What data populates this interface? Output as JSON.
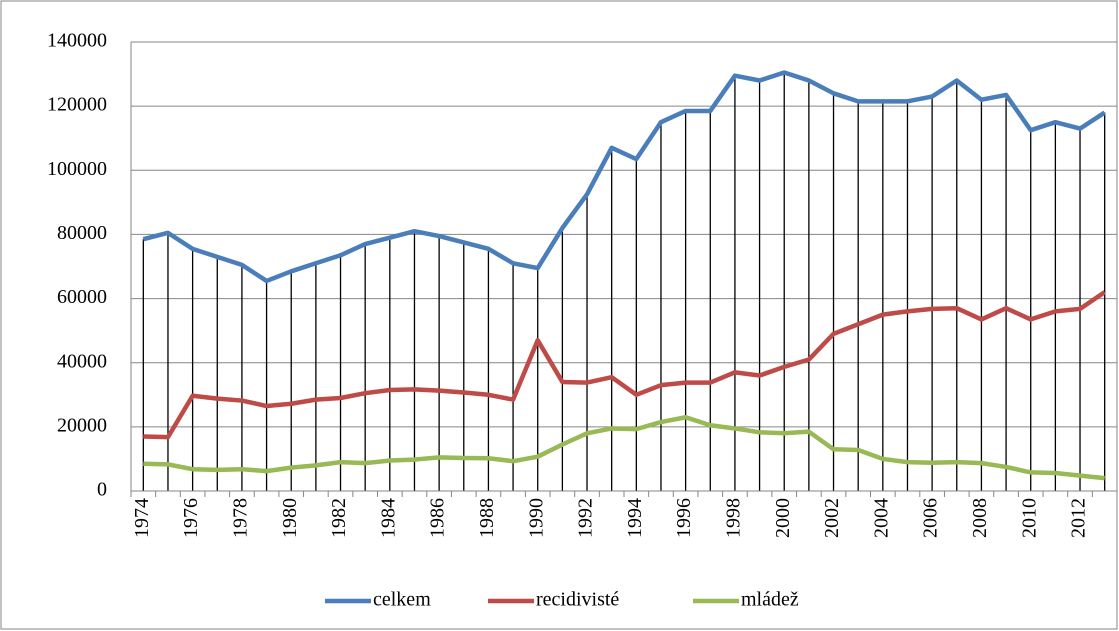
{
  "chart_data": {
    "type": "line",
    "categories": [
      "1974",
      null,
      "1976",
      null,
      "1978",
      null,
      "1980",
      null,
      "1982",
      null,
      "1984",
      null,
      "1986",
      null,
      "1988",
      null,
      "1990",
      null,
      "1992",
      null,
      "1994",
      null,
      "1996",
      null,
      "1998",
      null,
      "2000",
      null,
      "2002",
      null,
      "2004",
      null,
      "2006",
      null,
      "2008",
      null,
      "2010",
      null,
      "2012",
      null
    ],
    "series": [
      {
        "name": "celkem",
        "color": "#4a7ebb",
        "values": [
          78500,
          80500,
          75500,
          73000,
          70500,
          65500,
          68500,
          71000,
          73500,
          77000,
          79000,
          81000,
          79500,
          77500,
          75500,
          71000,
          69500,
          82000,
          92500,
          107000,
          103500,
          115000,
          118500,
          118500,
          129500,
          128000,
          130500,
          128000,
          124000,
          121500,
          121500,
          121500,
          123000,
          128000,
          122000,
          123500,
          112500,
          115000,
          113000,
          118000
        ]
      },
      {
        "name": "recidivisté",
        "color": "#be4b48",
        "values": [
          17000,
          16800,
          29700,
          28800,
          28200,
          26500,
          27200,
          28500,
          29000,
          30500,
          31500,
          31700,
          31300,
          30700,
          30000,
          28500,
          47000,
          34000,
          33800,
          35500,
          30000,
          33000,
          33800,
          33800,
          37000,
          36000,
          38700,
          41000,
          49000,
          52000,
          55000,
          56000,
          56800,
          57000,
          53500,
          57000,
          53500,
          56000,
          56800,
          62000
        ]
      },
      {
        "name": "mládež",
        "color": "#98b954",
        "values": [
          8500,
          8300,
          6800,
          6600,
          6800,
          6200,
          7300,
          8000,
          9000,
          8700,
          9500,
          9800,
          10500,
          10300,
          10200,
          9300,
          10700,
          14500,
          18000,
          19500,
          19300,
          21500,
          23000,
          20500,
          19500,
          18300,
          18000,
          18500,
          13000,
          12800,
          10000,
          9000,
          8800,
          9000,
          8700,
          7500,
          5800,
          5600,
          4800,
          4000
        ]
      }
    ],
    "ylim": [
      0,
      140000
    ],
    "yticks": [
      0,
      20000,
      40000,
      60000,
      80000,
      100000,
      120000,
      140000
    ],
    "grid": true,
    "drop_lines": true,
    "legend": "bottom"
  }
}
